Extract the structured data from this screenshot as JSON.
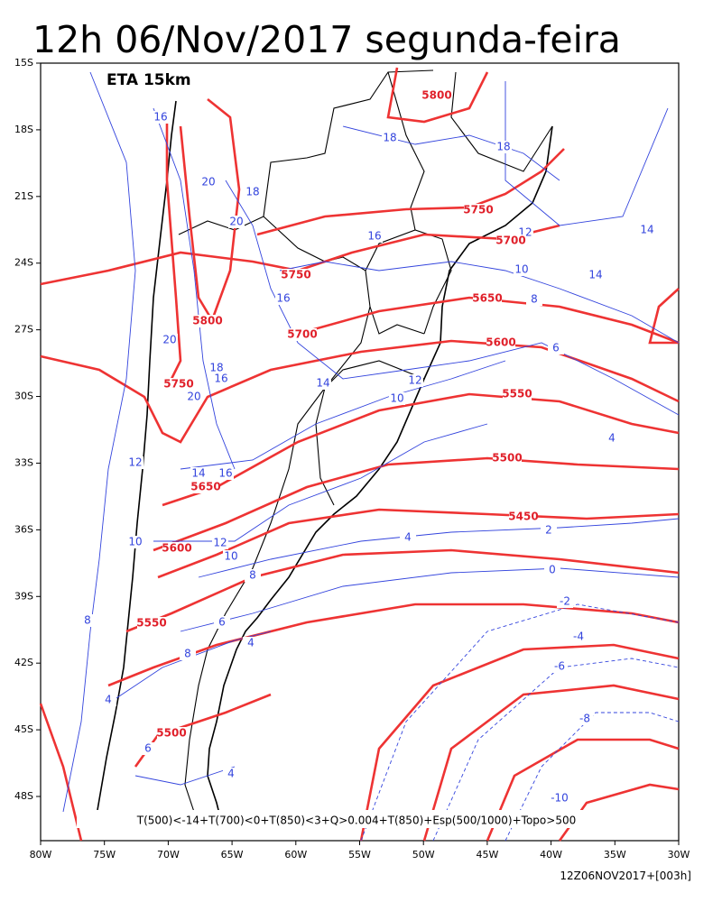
{
  "title": "12h 06/Nov/2017 segunda-feira",
  "model": "ETA 15km",
  "legend": "T(500)<-14+T(700)<0+T(850)<3+Q>0.004+T(850)+Esp(500/1000)+Topo>500",
  "footer": "12Z06NOV2017+[003h]",
  "axes": {
    "x_labels": [
      "80W",
      "75W",
      "70W",
      "65W",
      "60W",
      "55W",
      "50W",
      "45W",
      "40W",
      "35W",
      "30W"
    ],
    "y_labels": [
      "15S",
      "18S",
      "21S",
      "24S",
      "27S",
      "30S",
      "33S",
      "36S",
      "39S",
      "42S",
      "45S",
      "48S"
    ]
  },
  "height_contours": {
    "labels": [
      "5800",
      "5750",
      "5700",
      "5750",
      "5800",
      "5650",
      "5700",
      "5600",
      "5750",
      "5550",
      "5500",
      "5650",
      "5450",
      "5600",
      "5550",
      "5500"
    ]
  },
  "temperature_contours": {
    "labels": [
      "18",
      "18",
      "16",
      "20",
      "18",
      "20",
      "16",
      "14",
      "12",
      "10",
      "14",
      "8",
      "16",
      "20",
      "18",
      "16",
      "20",
      "14",
      "12",
      "10",
      "6",
      "4",
      "12",
      "14",
      "16",
      "10",
      "12",
      "10",
      "8",
      "4",
      "2",
      "0",
      "8",
      "6",
      "4",
      "8",
      "-2",
      "-4",
      "-6",
      "4",
      "-8",
      "6",
      "4",
      "-10"
    ]
  }
}
